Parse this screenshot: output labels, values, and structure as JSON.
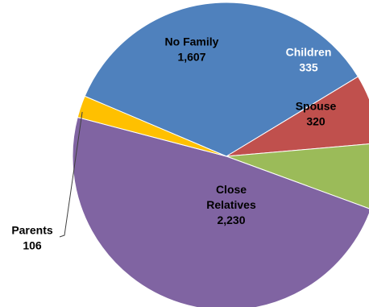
{
  "chart_data": {
    "type": "pie",
    "slices": [
      {
        "label": "No Family",
        "value": 1607,
        "display_value": "1,607",
        "color": "#4f81bd",
        "label_color": "#000000"
      },
      {
        "label": "Children",
        "value": 335,
        "display_value": "335",
        "color": "#c0504d",
        "label_color": "#ffffff"
      },
      {
        "label": "Spouse",
        "value": 320,
        "display_value": "320",
        "color": "#9bbb59",
        "label_color": "#000000"
      },
      {
        "label": "Close Relatives",
        "label_lines": [
          "Close",
          "Relatives"
        ],
        "value": 2230,
        "display_value": "2,230",
        "color": "#8064a2",
        "label_color": "#000000"
      },
      {
        "label": "Parents",
        "value": 106,
        "display_value": "106",
        "color": "#ffc000",
        "label_color": "#000000"
      }
    ],
    "start_angle_deg": 157,
    "legend": "none"
  }
}
